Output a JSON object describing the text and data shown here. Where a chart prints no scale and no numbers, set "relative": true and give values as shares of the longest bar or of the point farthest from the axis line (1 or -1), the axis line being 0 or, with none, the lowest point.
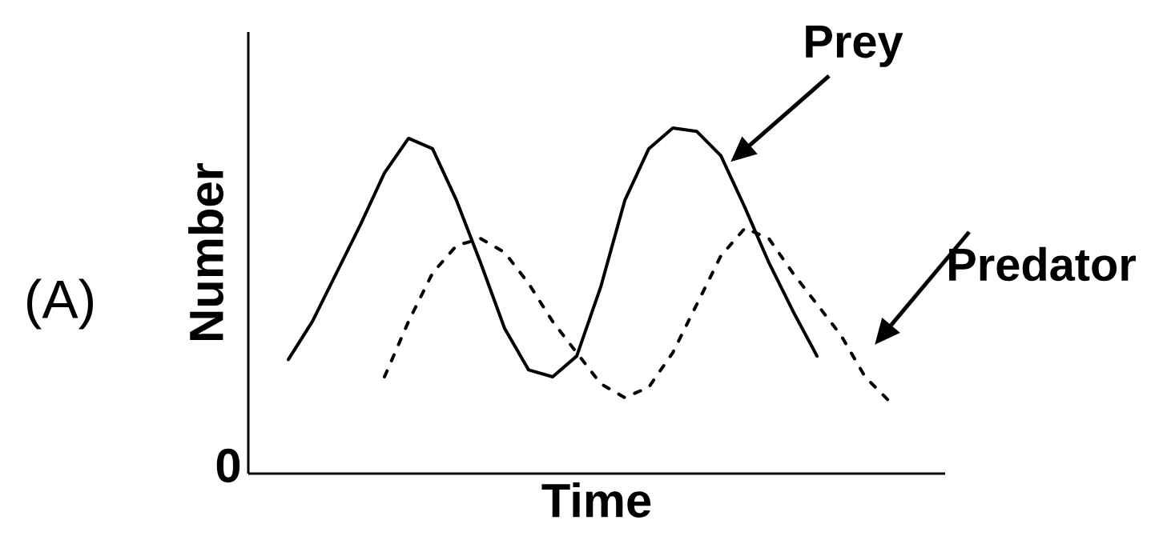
{
  "chart_data": {
    "type": "line",
    "relative": true,
    "xlabel": "Time",
    "ylabel": "Number",
    "annotations": [
      "(A)",
      "0"
    ],
    "categories": [
      null,
      null,
      null,
      null,
      null,
      null,
      null,
      null,
      null,
      null,
      null,
      null,
      null,
      null,
      null,
      null,
      null,
      null,
      null,
      null,
      null,
      null,
      null,
      null,
      null,
      null
    ],
    "series": [
      {
        "name": "Prey",
        "color": "#000000",
        "line_style": "solid",
        "values": [
          0.33,
          0.44,
          0.58,
          0.72,
          0.87,
          0.97,
          0.94,
          0.79,
          0.61,
          0.42,
          0.3,
          0.28,
          0.34,
          0.54,
          0.79,
          0.94,
          1.0,
          0.99,
          0.92,
          0.77,
          0.61,
          0.47,
          0.34,
          null,
          null,
          null
        ]
      },
      {
        "name": "Predator",
        "color": "#000000",
        "line_style": "dotted",
        "values": [
          null,
          null,
          null,
          null,
          0.28,
          0.44,
          0.58,
          0.66,
          0.68,
          0.64,
          0.55,
          0.44,
          0.35,
          0.26,
          0.22,
          0.25,
          0.35,
          0.49,
          0.63,
          0.71,
          0.68,
          0.58,
          0.49,
          0.4,
          0.28,
          0.21
        ]
      }
    ]
  }
}
